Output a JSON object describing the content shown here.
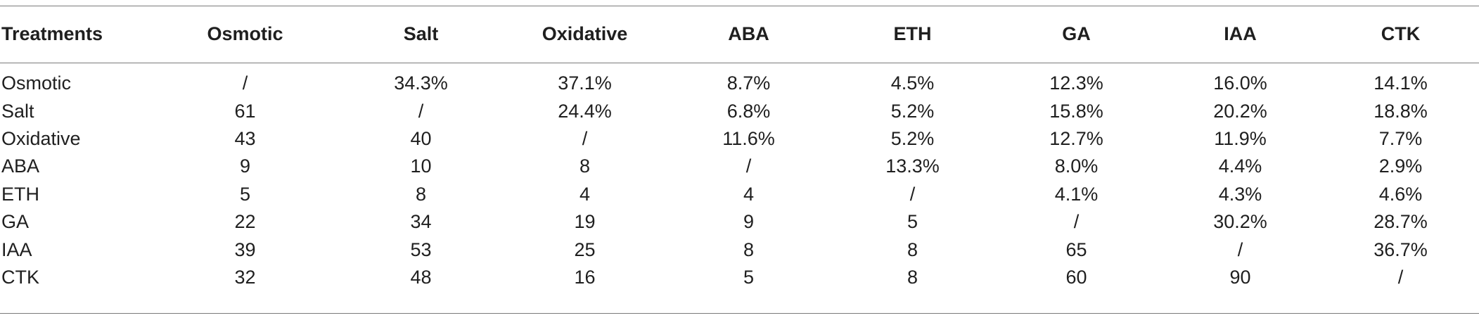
{
  "table": {
    "headers": [
      "Treatments",
      "Osmotic",
      "Salt",
      "Oxidative",
      "ABA",
      "ETH",
      "GA",
      "IAA",
      "CTK"
    ],
    "rows": [
      [
        "Osmotic",
        "/",
        "34.3%",
        "37.1%",
        "8.7%",
        "4.5%",
        "12.3%",
        "16.0%",
        "14.1%"
      ],
      [
        "Salt",
        "61",
        "/",
        "24.4%",
        "6.8%",
        "5.2%",
        "15.8%",
        "20.2%",
        "18.8%"
      ],
      [
        "Oxidative",
        "43",
        "40",
        "/",
        "11.6%",
        "5.2%",
        "12.7%",
        "11.9%",
        "7.7%"
      ],
      [
        "ABA",
        "9",
        "10",
        "8",
        "/",
        "13.3%",
        "8.0%",
        "4.4%",
        "2.9%"
      ],
      [
        "ETH",
        "5",
        "8",
        "4",
        "4",
        "/",
        "4.1%",
        "4.3%",
        "4.6%"
      ],
      [
        "GA",
        "22",
        "34",
        "19",
        "9",
        "5",
        "/",
        "30.2%",
        "28.7%"
      ],
      [
        "IAA",
        "39",
        "53",
        "25",
        "8",
        "8",
        "65",
        "/",
        "36.7%"
      ],
      [
        "CTK",
        "32",
        "48",
        "16",
        "5",
        "8",
        "60",
        "90",
        "/"
      ]
    ]
  }
}
